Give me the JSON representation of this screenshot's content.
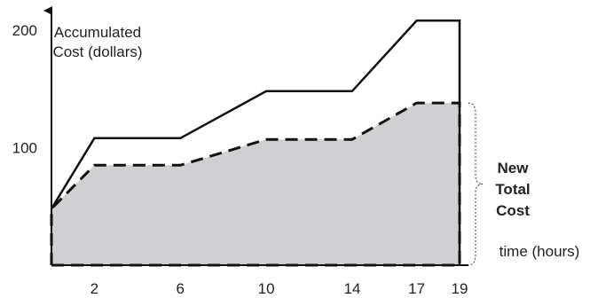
{
  "chart_data": {
    "type": "area",
    "title": "",
    "ylabel_lines": [
      "Accumulated",
      "Cost (dollars)"
    ],
    "xlabel": "time (hours)",
    "x_ticks": [
      2,
      6,
      10,
      14,
      17,
      19
    ],
    "y_ticks": [
      100,
      200
    ],
    "xlim": [
      0,
      19
    ],
    "ylim": [
      0,
      215
    ],
    "series": [
      {
        "style": "solid",
        "points": [
          [
            0,
            48
          ],
          [
            2,
            108
          ],
          [
            6,
            108
          ],
          [
            10,
            148
          ],
          [
            14,
            148
          ],
          [
            17,
            208
          ],
          [
            19,
            208
          ],
          [
            19,
            0
          ]
        ]
      },
      {
        "style": "dashed",
        "fill": "#d0d0d2",
        "points": [
          [
            0,
            0
          ],
          [
            0,
            48
          ],
          [
            2,
            85
          ],
          [
            6,
            85
          ],
          [
            10,
            107
          ],
          [
            14,
            107
          ],
          [
            17,
            138
          ],
          [
            19,
            138
          ],
          [
            19,
            0
          ],
          [
            0,
            0
          ]
        ]
      }
    ],
    "annotation": {
      "lines": [
        "New",
        "Total",
        "Cost"
      ],
      "brace_range": [
        0,
        138
      ]
    }
  }
}
